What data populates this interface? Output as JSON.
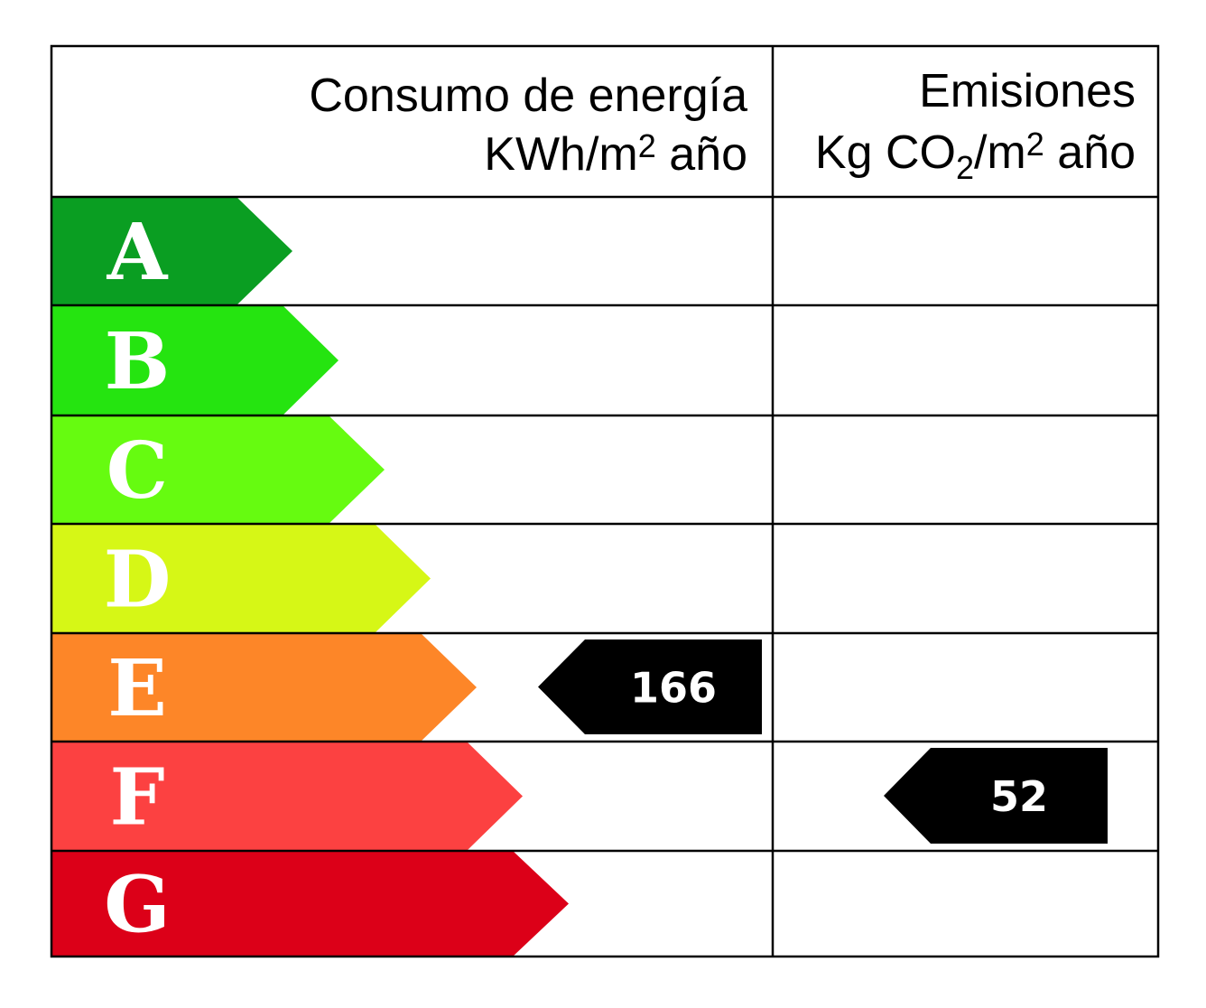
{
  "header": {
    "energy_line1": "Consumo de energía",
    "energy_line2_unit": "KWh/m",
    "energy_line2_exp": "2",
    "energy_line2_tail": " año",
    "emissions_line1": "Emisiones",
    "emissions_line2_a": "Kg CO",
    "emissions_line2_sub": "2",
    "emissions_line2_b": "/m",
    "emissions_line2_exp": "2",
    "emissions_line2_tail": " año"
  },
  "ratings": [
    {
      "letter": "A",
      "color": "#0a9e22"
    },
    {
      "letter": "B",
      "color": "#25e410"
    },
    {
      "letter": "C",
      "color": "#66fb10"
    },
    {
      "letter": "D",
      "color": "#d6f716"
    },
    {
      "letter": "E",
      "color": "#fd8628"
    },
    {
      "letter": "F",
      "color": "#fc4141"
    },
    {
      "letter": "G",
      "color": "#dc0018"
    }
  ],
  "energy_indicator": {
    "class": "E",
    "value": "166",
    "color": "#000000"
  },
  "emissions_indicator": {
    "class": "F",
    "value": "52",
    "color": "#000000"
  }
}
